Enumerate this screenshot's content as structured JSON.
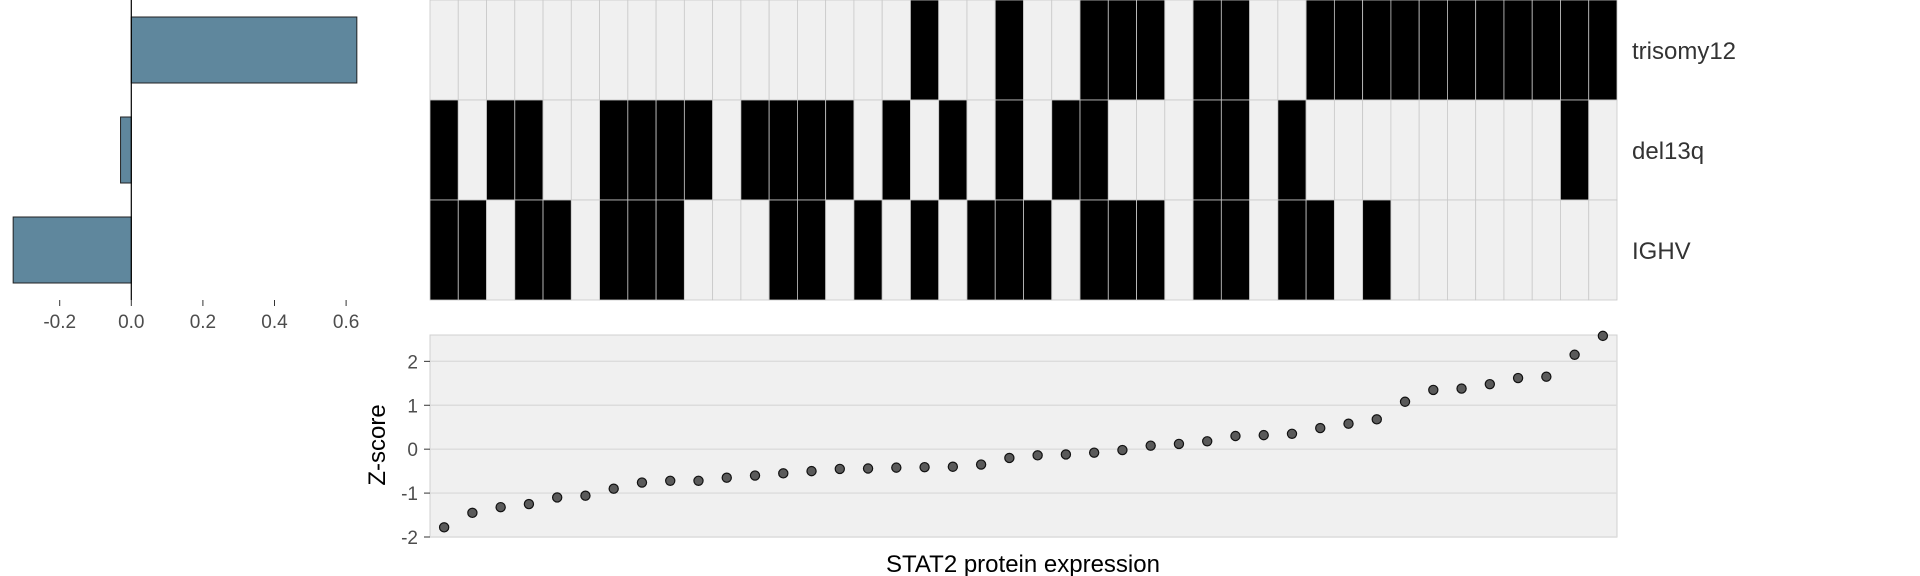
{
  "chart_data": [
    {
      "type": "bar",
      "orientation": "horizontal",
      "categories": [
        "trisomy12",
        "del13q",
        "IGHV"
      ],
      "values": [
        0.63,
        -0.03,
        -0.33
      ],
      "xlim": [
        -0.35,
        0.65
      ],
      "xticks": [
        -0.2,
        0.0,
        0.2,
        0.4,
        0.6
      ],
      "xtick_labels": [
        "-0.2",
        "0.0",
        "0.2",
        "0.4",
        "0.6"
      ],
      "bar_color": "#5f879d",
      "grid": false
    },
    {
      "type": "heatmap",
      "rows": [
        "trisomy12",
        "del13q",
        "IGHV"
      ],
      "n_columns": 42,
      "matrix": [
        [
          0,
          0,
          0,
          0,
          0,
          0,
          0,
          0,
          0,
          0,
          0,
          0,
          0,
          0,
          0,
          0,
          0,
          1,
          0,
          0,
          1,
          0,
          0,
          1,
          1,
          1,
          0,
          1,
          1,
          0,
          0,
          1,
          1,
          1,
          1,
          1,
          1,
          1,
          1,
          1,
          1,
          1
        ],
        [
          1,
          0,
          1,
          1,
          0,
          0,
          1,
          1,
          1,
          1,
          0,
          1,
          1,
          1,
          1,
          0,
          1,
          0,
          1,
          0,
          1,
          0,
          1,
          1,
          0,
          0,
          0,
          1,
          1,
          0,
          1,
          0,
          0,
          0,
          0,
          0,
          0,
          0,
          0,
          0,
          1,
          0
        ],
        [
          1,
          1,
          0,
          1,
          1,
          0,
          1,
          1,
          1,
          0,
          0,
          0,
          1,
          1,
          0,
          1,
          0,
          1,
          0,
          1,
          1,
          1,
          0,
          1,
          1,
          1,
          0,
          1,
          1,
          0,
          1,
          1,
          0,
          1,
          0,
          0,
          0,
          0,
          0,
          0,
          0,
          0
        ]
      ],
      "colors": {
        "on": "#000000",
        "off": "#f0f0f0"
      }
    },
    {
      "type": "scatter",
      "xlabel": "STAT2 protein expression",
      "ylabel": "Z-score",
      "ylim": [
        -2,
        2.6
      ],
      "yticks": [
        -2,
        -1,
        0,
        1,
        2
      ],
      "ytick_labels": [
        "-2",
        "-1",
        "0",
        "1",
        "2"
      ],
      "values": [
        -1.78,
        -1.45,
        -1.32,
        -1.25,
        -1.1,
        -1.06,
        -0.9,
        -0.76,
        -0.72,
        -0.72,
        -0.65,
        -0.6,
        -0.55,
        -0.5,
        -0.45,
        -0.44,
        -0.42,
        -0.41,
        -0.4,
        -0.35,
        -0.2,
        -0.14,
        -0.12,
        -0.08,
        -0.02,
        0.08,
        0.12,
        0.18,
        0.3,
        0.32,
        0.35,
        0.48,
        0.58,
        0.68,
        1.08,
        1.35,
        1.38,
        1.48,
        1.62,
        1.65,
        2.15,
        2.58
      ],
      "grid": true,
      "panel_color": "#f0f0f0",
      "point_color": "#5a5a5a"
    }
  ]
}
